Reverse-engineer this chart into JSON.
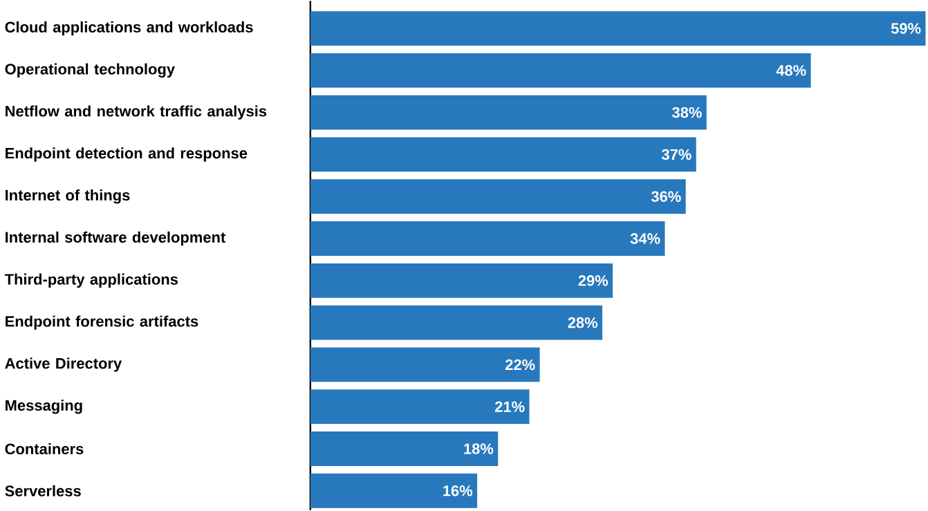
{
  "chart_data": {
    "type": "bar",
    "orientation": "horizontal",
    "categories": [
      "Cloud applications and workloads",
      "Operational technology",
      "Netflow and network traffic analysis",
      "Endpoint detection and response",
      "Internet of things",
      "Internal software development",
      "Third-party applications",
      "Endpoint forensic artifacts",
      "Active Directory",
      "Messaging",
      "Containers",
      "Serverless"
    ],
    "values": [
      59,
      48,
      38,
      37,
      36,
      34,
      29,
      28,
      22,
      21,
      18,
      16
    ],
    "value_labels": [
      "59%",
      "48%",
      "38%",
      "37%",
      "36%",
      "34%",
      "29%",
      "28%",
      "22%",
      "21%",
      "18%",
      "16%"
    ],
    "color": "#2878bd"
  }
}
